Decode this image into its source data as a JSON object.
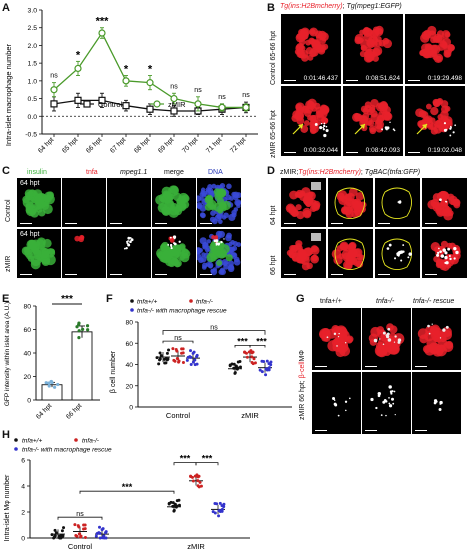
{
  "panels": {
    "A": "A",
    "B": "B",
    "C": "C",
    "D": "D",
    "E": "E",
    "F": "F",
    "G": "G",
    "H": "H"
  },
  "colors": {
    "control": "#111111",
    "zmir": "#4a9a2a",
    "wt": "#111111",
    "ko": "#cc2222",
    "rescue": "#3333cc",
    "cell_red": "#e8212a",
    "cell_green": "#3ab03a",
    "dna_blue": "#2a3ab8",
    "yellow_outline": "#e6e620"
  },
  "panel_A": {
    "ylabel": "Intra-islet macrophage number",
    "legend": {
      "control": "Control",
      "zmir": "zMIR"
    },
    "chart_data": {
      "type": "line",
      "categories": [
        "64 hpt",
        "65 hpt",
        "66 hpt",
        "67 hpt",
        "68 hpt",
        "69 hpt",
        "70 hpt",
        "71 hpt",
        "72 hpt"
      ],
      "ylim": [
        -0.5,
        3
      ],
      "yticks": [
        "-0.5",
        "0.0",
        "0.5",
        "1.0",
        "1.5",
        "2.0",
        "2.5",
        "3.0"
      ],
      "series": [
        {
          "name": "Control",
          "values": [
            0.35,
            0.45,
            0.45,
            0.3,
            0.2,
            0.15,
            0.15,
            0.2,
            0.25
          ],
          "err": [
            0.2,
            0.2,
            0.2,
            0.15,
            0.15,
            0.15,
            0.1,
            0.15,
            0.15
          ]
        },
        {
          "name": "zMIR",
          "values": [
            0.75,
            1.35,
            2.35,
            1.0,
            0.95,
            0.5,
            0.35,
            0.25,
            0.25
          ],
          "err": [
            0.2,
            0.2,
            0.15,
            0.15,
            0.2,
            0.15,
            0.2,
            0.1,
            0.1
          ]
        }
      ],
      "significance": [
        "ns",
        "*",
        "***",
        "*",
        "*",
        "ns",
        "ns",
        "ns",
        "ns"
      ]
    }
  },
  "panel_B": {
    "title_red": "Tg(ins:H2Bmcherry)",
    "title_sep": "; ",
    "title_white": "Tg(mpeg1:EGFP)",
    "row_labels": [
      "Control 65-66 hpt",
      "zMIR 65-66 hpt"
    ],
    "timestamps": [
      [
        "0:01:46.437",
        "0:08:51.624",
        "0:19:29.498"
      ],
      [
        "0:00:32.044",
        "0:08:42.093",
        "0:19:02.048"
      ]
    ]
  },
  "panel_C": {
    "headers": [
      "insulin",
      "tnfa",
      "mpeg1.1",
      "merge",
      "DNA"
    ],
    "row_labels": [
      "Control",
      "zMIR"
    ],
    "inset_labels": [
      "64 hpt",
      "64 hpt"
    ]
  },
  "panel_D": {
    "title_prefix": "zMIR;",
    "title_red": "Tg(ins:H2Bmcherry)",
    "title_sep": "; ",
    "title_white": "TgBAC(tnfa:GFP)",
    "row_labels": [
      "64 hpt",
      "66 hpt"
    ]
  },
  "panel_E": {
    "ylabel": "GFP intensity within islet area (A.U.)",
    "significance": "***",
    "chart_data": {
      "type": "bar",
      "categories": [
        "64 hpt",
        "66 hpt"
      ],
      "values": [
        13,
        58
      ],
      "err": [
        2,
        5
      ],
      "ylim": [
        0,
        80
      ],
      "yticks": [
        "0",
        "20",
        "40",
        "60",
        "80"
      ]
    }
  },
  "panel_F": {
    "ylabel": "β cell number",
    "legend": [
      "tnfa+/+",
      "tnfa-/-",
      "tnfa-/- with macrophage rescue"
    ],
    "significance": {
      "top": "ns",
      "control": "ns",
      "zmir_left": "***",
      "zmir_right": "***"
    },
    "chart_data": {
      "type": "bar",
      "categories": [
        "Control",
        "zMIR"
      ],
      "series": [
        {
          "name": "tnfa+/+",
          "values": [
            47,
            36
          ]
        },
        {
          "name": "tnfa-/-",
          "values": [
            48,
            47
          ]
        },
        {
          "name": "tnfa-/- with macrophage rescue",
          "values": [
            46,
            37
          ]
        }
      ],
      "ylim": [
        0,
        80
      ],
      "yticks": [
        "0",
        "20",
        "40",
        "60",
        "80"
      ]
    }
  },
  "panel_G": {
    "col_labels": [
      "tnfa+/+",
      "tnfa-/-",
      "tnfa-/- rescue"
    ],
    "row_label_prefix": "zMIR 66 hpt; ",
    "row_label_red": "β-cell",
    "row_label_white": "MΦ"
  },
  "panel_H": {
    "ylabel": "Intra-islet Mφ number",
    "legend": [
      "tnfa+/+",
      "tnfa-/-",
      "tnfa-/- with macrophage rescue"
    ],
    "significance": {
      "control": "ns",
      "cross": "***",
      "zmir_left": "***",
      "zmir_right": "***"
    },
    "chart_data": {
      "type": "bar",
      "categories": [
        "Control",
        "zMIR"
      ],
      "series": [
        {
          "name": "tnfa+/+",
          "values": [
            0.3,
            2.4
          ]
        },
        {
          "name": "tnfa-/-",
          "values": [
            0.5,
            4.4
          ]
        },
        {
          "name": "tnfa-/- with macrophage rescue",
          "values": [
            0.3,
            2.2
          ]
        }
      ],
      "ylim": [
        0,
        6
      ],
      "yticks": [
        "0",
        "2",
        "4",
        "6"
      ]
    }
  }
}
